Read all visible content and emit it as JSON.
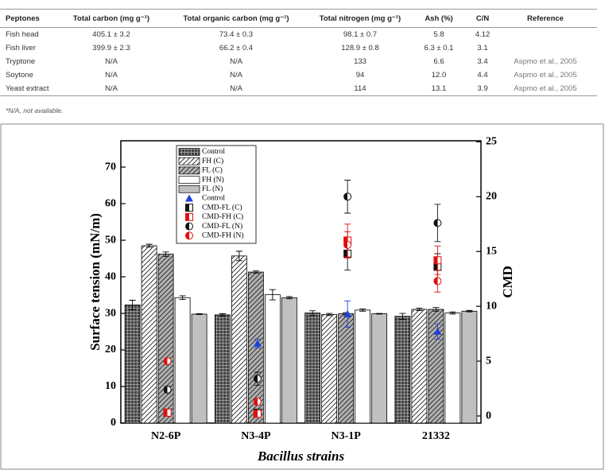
{
  "table": {
    "header": [
      "Peptones",
      "Total carbon (mg g⁻¹)",
      "Total organic carbon (mg g⁻¹)",
      "Total nitrogen (mg g⁻¹)",
      "Ash (%)",
      "C/N",
      "Reference"
    ],
    "rows": [
      [
        "Fish head",
        "405.1 ± 3.2",
        "73.4 ± 0.3",
        "98.1 ± 0.7",
        "5.8",
        "4.12",
        null
      ],
      [
        "Fish liver",
        "399.9 ± 2.3",
        "66.2 ± 0.4",
        "128.9 ± 0.8",
        "6.3 ± 0.1",
        "3.1",
        null
      ],
      [
        "Tryptone",
        "N/A",
        "N/A",
        "133",
        "6.6",
        "3.4",
        "Aspmo et al., 2005"
      ],
      [
        "Soytone",
        "N/A",
        "N/A",
        "94",
        "12.0",
        "4.4",
        "Aspmo et al., 2005"
      ],
      [
        "Yeast extract",
        "N/A",
        "N/A",
        "114",
        "13.1",
        "3.9",
        "Aspmo et al., 2005"
      ]
    ],
    "footnote": "*N/A, not available."
  },
  "chart_data": {
    "type": "bar",
    "xlabel": "Bacillus strains",
    "ylabel": "Surface tension (mN/m)",
    "y2label": "CMD",
    "categories": [
      "N2-6P",
      "N3-4P",
      "N3-1P",
      "21332"
    ],
    "ylim": [
      0,
      77.2
    ],
    "yticks": [
      0,
      10,
      20,
      30,
      40,
      50,
      60,
      70
    ],
    "y2lim": [
      -0.65,
      25.1
    ],
    "y2ticks": [
      0,
      5,
      10,
      15,
      20,
      25
    ],
    "series": [
      {
        "name": "Control",
        "type": "bar",
        "pattern": "grid",
        "color": "#444444",
        "values": [
          32.3,
          29.6,
          30.1,
          29.2
        ],
        "errors": [
          1.3,
          0.3,
          0.6,
          0.8
        ]
      },
      {
        "name": "FH (C)",
        "type": "bar",
        "pattern": "hatch",
        "color": "#ffffff",
        "values": [
          48.5,
          45.7,
          29.7,
          31.1
        ],
        "errors": [
          0.4,
          1.3,
          0.3,
          0.3
        ]
      },
      {
        "name": "FL (C)",
        "type": "bar",
        "pattern": "hatch",
        "color": "#b0b0b0",
        "values": [
          46.2,
          41.3,
          29.9,
          31.1
        ],
        "errors": [
          0.6,
          0.3,
          0.3,
          0.5
        ]
      },
      {
        "name": "FH (N)",
        "type": "bar",
        "pattern": "solid",
        "color": "#ffffff",
        "values": [
          34.3,
          35.1,
          30.9,
          30.1
        ],
        "errors": [
          0.5,
          1.4,
          0.3,
          0.3
        ]
      },
      {
        "name": "FL (N)",
        "type": "bar",
        "pattern": "solid",
        "color": "#c0c0c0",
        "values": [
          29.8,
          34.3,
          29.9,
          30.6
        ],
        "errors": [
          0.1,
          0.3,
          0.1,
          0.2
        ]
      },
      {
        "name": "Control",
        "type": "scatter",
        "marker": "triangle",
        "axis": "y2",
        "color": "#1f3fd8",
        "values": [
          null,
          6.6,
          9.3,
          7.7
        ],
        "errors": [
          null,
          0.4,
          1.2,
          0.7
        ]
      },
      {
        "name": "CMD-FL (C)",
        "type": "scatter",
        "marker": "square",
        "axis": "y2",
        "color": "#111111",
        "values": [
          0.3,
          0.3,
          14.8,
          13.6
        ],
        "errors": [
          0.2,
          0.2,
          1.5,
          1.2
        ]
      },
      {
        "name": "CMD-FH (C)",
        "type": "scatter",
        "marker": "square",
        "axis": "y2",
        "color": "#e01010",
        "values": [
          0.3,
          0.2,
          16.0,
          14.2
        ],
        "errors": [
          0.2,
          0.2,
          1.5,
          1.3
        ]
      },
      {
        "name": "CMD-FL (N)",
        "type": "scatter",
        "marker": "circle",
        "axis": "y2",
        "color": "#111111",
        "values": [
          2.4,
          3.4,
          20.0,
          17.6
        ],
        "errors": [
          0.3,
          0.6,
          1.5,
          1.7
        ]
      },
      {
        "name": "CMD-FH (N)",
        "type": "scatter",
        "marker": "circle",
        "axis": "y2",
        "color": "#e01010",
        "values": [
          5.0,
          1.3,
          15.6,
          12.3
        ],
        "errors": [
          0.3,
          0.3,
          1.2,
          1.0
        ]
      }
    ]
  }
}
